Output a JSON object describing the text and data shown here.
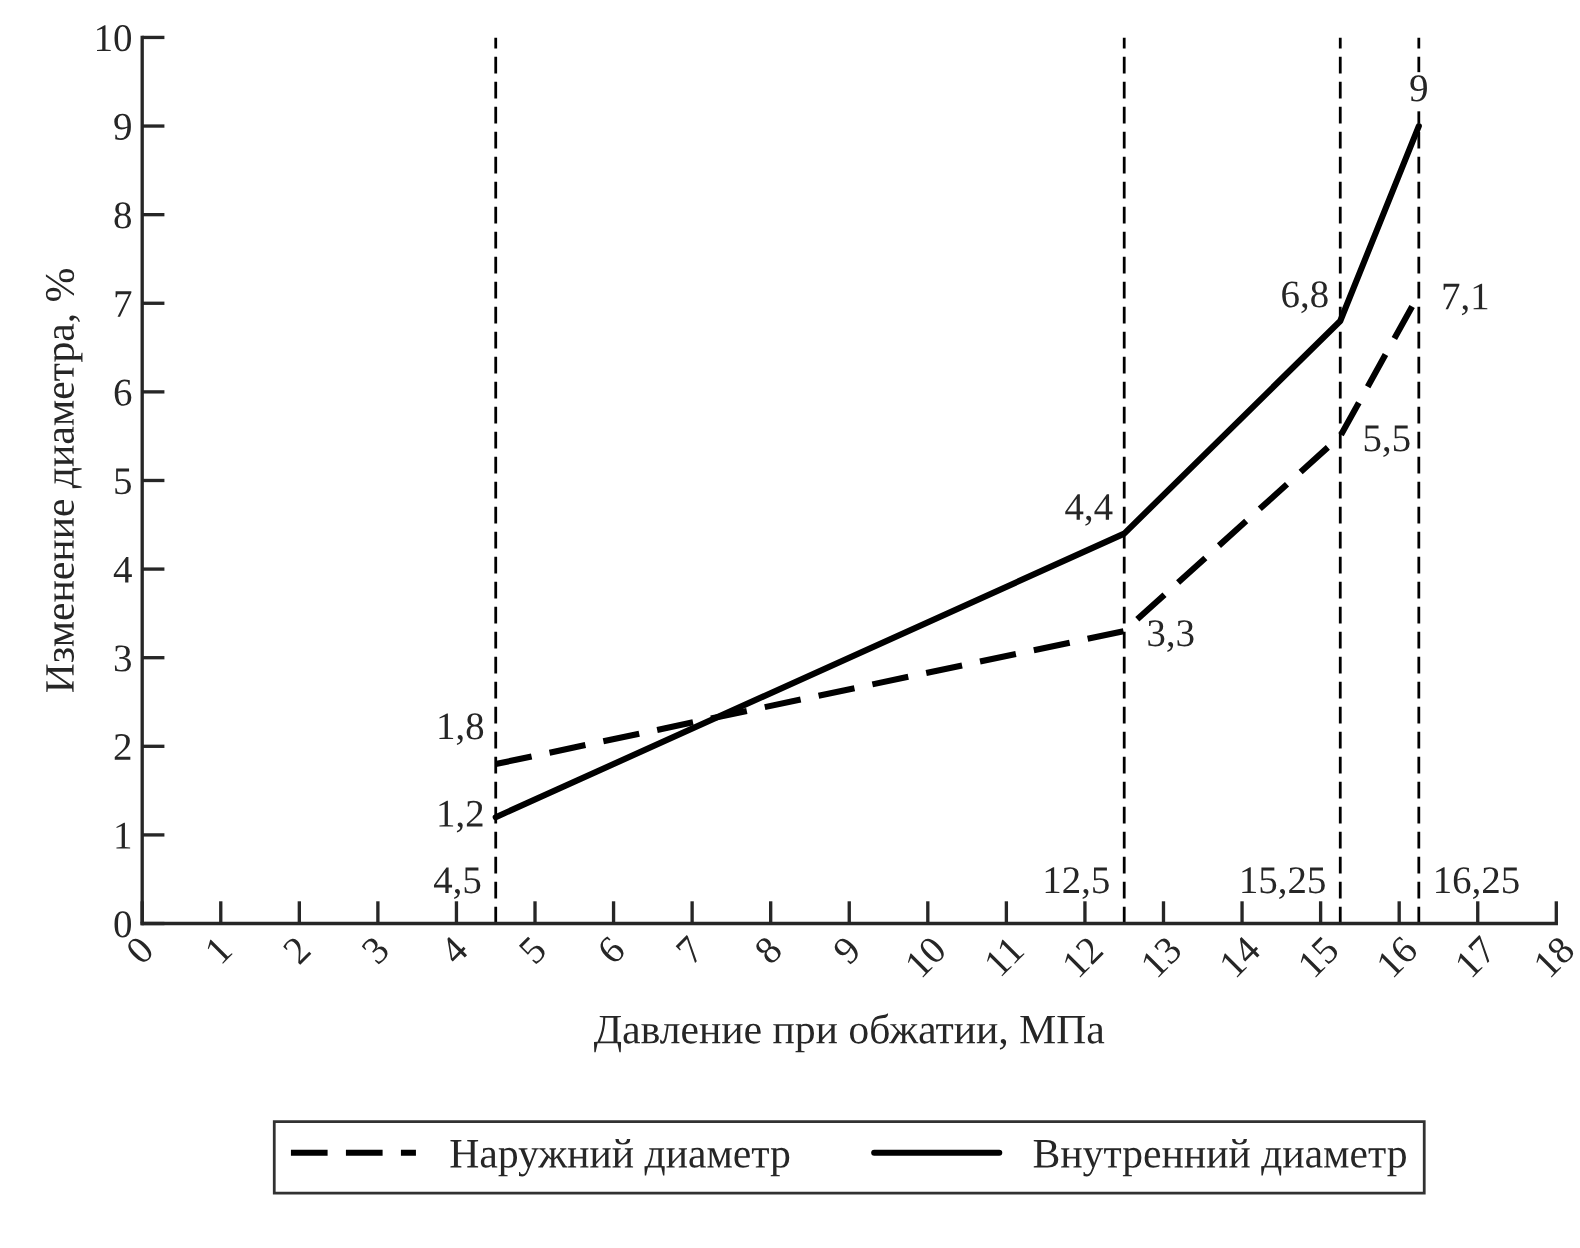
{
  "chart_data": {
    "type": "line",
    "xlabel": "Давление при обжатии, МПа",
    "ylabel": "Изменение диаметра, %",
    "xlim": [
      0,
      18
    ],
    "xticks": [
      0,
      1,
      2,
      3,
      4,
      5,
      6,
      7,
      8,
      9,
      10,
      11,
      12,
      13,
      14,
      15,
      16,
      17,
      18
    ],
    "ylim": [
      0,
      10
    ],
    "yticks": [
      0,
      1,
      2,
      3,
      4,
      5,
      6,
      7,
      8,
      9,
      10
    ],
    "series": [
      {
        "name": "Наружний диаметр",
        "color": "#000000",
        "line_style": "dashed",
        "x": [
          4.5,
          12.5,
          15.25,
          16.25
        ],
        "values": [
          1.8,
          3.3,
          5.5,
          7.1
        ],
        "value_labels": [
          "1,8",
          "3,3",
          "5,5",
          "7,1"
        ]
      },
      {
        "name": "Внутренний диаметр",
        "color": "#000000",
        "line_style": "solid",
        "x": [
          4.5,
          12.5,
          15.25,
          16.25
        ],
        "values": [
          1.2,
          4.4,
          6.8,
          9
        ],
        "value_labels": [
          "1,2",
          "4,4",
          "6,8",
          "9"
        ]
      }
    ],
    "ref_lines": [
      {
        "axis": "x",
        "value": 4.5,
        "label": "4,5",
        "line_style": "dashed"
      },
      {
        "axis": "x",
        "value": 12.5,
        "label": "12,5",
        "line_style": "dashed"
      },
      {
        "axis": "x",
        "value": 15.25,
        "label": "15,25",
        "line_style": "dashed"
      },
      {
        "axis": "x",
        "value": 16.25,
        "label": "16,25",
        "line_style": "dashed"
      }
    ],
    "legend": "bottom",
    "grid": false
  }
}
